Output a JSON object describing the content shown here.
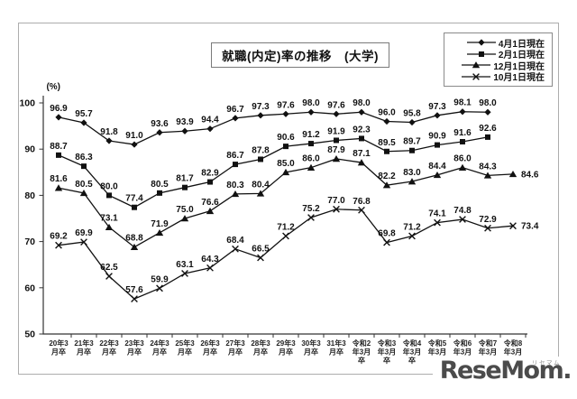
{
  "watermark": {
    "logo": "ReseMom.",
    "kana": "リセマム"
  },
  "chart_data": {
    "type": "line",
    "title": "就職(内定)率の推移　(大学)",
    "ylabel": "(%)",
    "ylim": [
      50,
      100
    ],
    "yticks": [
      50,
      60,
      70,
      80,
      90,
      100
    ],
    "grid": false,
    "legend_position": "top-right",
    "line_color": "#111111",
    "categories": [
      "20年3月卒",
      "21年3月卒",
      "22年3月卒",
      "23年3月卒",
      "24年3月卒",
      "25年3月卒",
      "26年3月卒",
      "27年3月卒",
      "28年3月卒",
      "29年3月卒",
      "30年3月卒",
      "31年3月卒",
      "令和2年3月卒",
      "令和3年3月卒",
      "令和4年3月卒",
      "令和5年3月卒",
      "令和6年3月卒",
      "令和7年3月卒",
      "令和8年3月卒"
    ],
    "category_display_lines": [
      [
        "20年3",
        "月卒"
      ],
      [
        "21年3",
        "月卒"
      ],
      [
        "22年3",
        "月卒"
      ],
      [
        "23年3",
        "月卒"
      ],
      [
        "24年3",
        "月卒"
      ],
      [
        "25年3",
        "月卒"
      ],
      [
        "26年3",
        "月卒"
      ],
      [
        "27年3",
        "月卒"
      ],
      [
        "28年3",
        "月卒"
      ],
      [
        "29年3",
        "月卒"
      ],
      [
        "30年3",
        "月卒"
      ],
      [
        "31年3",
        "月卒"
      ],
      [
        "令和2",
        "年3月",
        "卒"
      ],
      [
        "令和3",
        "年3月",
        "卒"
      ],
      [
        "令和4",
        "年3月",
        "卒"
      ],
      [
        "令和5",
        "年3月",
        "卒"
      ],
      [
        "令和6",
        "年3月",
        "卒"
      ],
      [
        "令和7",
        "年3月",
        "卒"
      ],
      [
        "令和8",
        "年3月",
        "卒"
      ]
    ],
    "series": [
      {
        "name": "4月1日現在",
        "marker": "diamond",
        "values": [
          96.9,
          95.7,
          91.8,
          91.0,
          93.6,
          93.9,
          94.4,
          96.7,
          97.3,
          97.6,
          98.0,
          97.6,
          98.0,
          96.0,
          95.8,
          97.3,
          98.1,
          98.0
        ]
      },
      {
        "name": "2月1日現在",
        "marker": "square",
        "values": [
          88.7,
          86.3,
          80.0,
          77.4,
          80.5,
          81.7,
          82.9,
          86.7,
          87.8,
          90.6,
          91.2,
          91.9,
          92.3,
          89.5,
          89.7,
          90.9,
          91.6,
          92.6
        ]
      },
      {
        "name": "12月1日現在",
        "marker": "triangle",
        "values": [
          81.6,
          80.5,
          73.1,
          68.8,
          71.9,
          75.0,
          76.6,
          80.3,
          80.4,
          85.0,
          86.0,
          87.9,
          87.1,
          82.2,
          83.0,
          84.4,
          86.0,
          84.3,
          84.6
        ]
      },
      {
        "name": "10月1日現在",
        "marker": "x",
        "values": [
          69.2,
          69.9,
          62.5,
          57.6,
          59.9,
          63.1,
          64.3,
          68.4,
          66.5,
          71.2,
          75.2,
          77.0,
          76.8,
          69.8,
          71.2,
          74.1,
          74.8,
          72.9,
          73.4
        ]
      }
    ]
  }
}
